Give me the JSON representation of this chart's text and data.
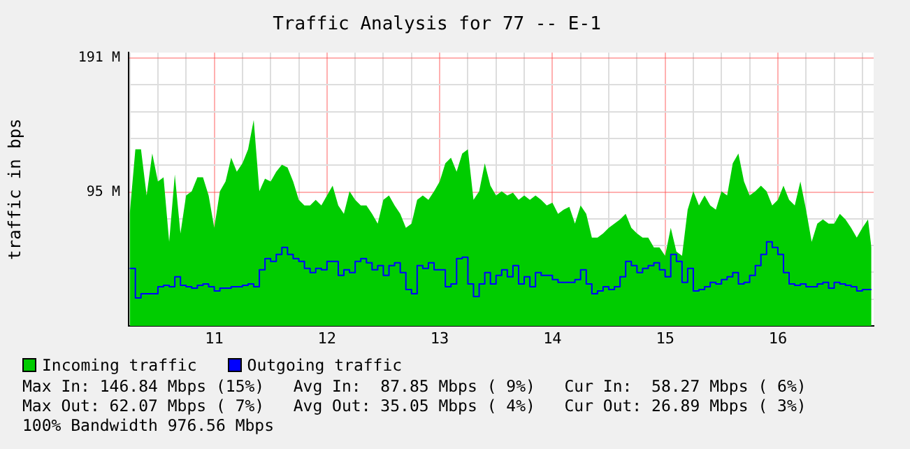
{
  "chart_data": {
    "type": "area",
    "title": "Traffic Analysis for 77 -- E-1",
    "ylabel": "traffic in bps",
    "x": [
      10.25,
      10.3,
      10.35,
      10.4,
      10.45,
      10.5,
      10.55,
      10.6,
      10.65,
      10.7,
      10.75,
      10.8,
      10.85,
      10.9,
      10.95,
      11,
      11.05,
      11.1,
      11.15,
      11.2,
      11.25,
      11.3,
      11.35,
      11.4,
      11.45,
      11.5,
      11.55,
      11.6,
      11.65,
      11.7,
      11.75,
      11.8,
      11.85,
      11.9,
      11.95,
      12,
      12.05,
      12.1,
      12.15,
      12.2,
      12.25,
      12.3,
      12.35,
      12.4,
      12.45,
      12.5,
      12.55,
      12.6,
      12.65,
      12.7,
      12.75,
      12.8,
      12.85,
      12.9,
      12.95,
      13,
      13.05,
      13.1,
      13.15,
      13.2,
      13.25,
      13.3,
      13.35,
      13.4,
      13.45,
      13.5,
      13.55,
      13.6,
      13.65,
      13.7,
      13.75,
      13.8,
      13.85,
      13.9,
      13.95,
      14,
      14.05,
      14.1,
      14.15,
      14.2,
      14.25,
      14.3,
      14.35,
      14.4,
      14.45,
      14.5,
      14.55,
      14.6,
      14.65,
      14.7,
      14.75,
      14.8,
      14.85,
      14.9,
      14.95,
      15,
      15.05,
      15.1,
      15.15,
      15.2,
      15.25,
      15.3,
      15.35,
      15.4,
      15.45,
      15.5,
      15.55,
      15.6,
      15.65,
      15.7,
      15.75,
      15.8,
      15.85,
      15.9,
      15.95,
      16,
      16.05,
      16.1,
      16.15,
      16.2,
      16.25,
      16.3,
      16.35,
      16.4,
      16.45,
      16.5,
      16.55,
      16.6,
      16.65,
      16.7,
      16.75,
      16.8,
      16.83
    ],
    "series": [
      {
        "name": "Incoming traffic",
        "type": "area",
        "color": "#00cc00",
        "values": [
          80,
          126,
          126,
          93,
          123,
          103,
          106,
          60,
          108,
          66,
          93,
          96,
          106,
          106,
          93,
          70,
          96,
          103,
          120,
          110,
          116,
          126,
          147,
          96,
          105,
          103,
          110,
          115,
          113,
          103,
          90,
          86,
          86,
          90,
          86,
          93,
          100,
          86,
          80,
          96,
          90,
          86,
          86,
          80,
          73,
          90,
          93,
          86,
          80,
          70,
          73,
          90,
          93,
          90,
          96,
          103,
          116,
          120,
          110,
          123,
          126,
          90,
          96,
          116,
          100,
          93,
          96,
          93,
          95,
          90,
          93,
          90,
          93,
          90,
          86,
          88,
          80,
          83,
          85,
          73,
          86,
          80,
          63,
          63,
          66,
          70,
          73,
          76,
          80,
          70,
          66,
          63,
          63,
          56,
          56,
          50,
          70,
          53,
          50,
          83,
          96,
          86,
          93,
          86,
          83,
          96,
          93,
          116,
          123,
          103,
          93,
          96,
          100,
          96,
          86,
          90,
          100,
          90,
          86,
          103,
          83,
          60,
          73,
          76,
          73,
          73,
          80,
          76,
          70,
          63,
          70,
          76,
          56
        ]
      },
      {
        "name": "Outgoing traffic",
        "type": "step",
        "color": "#0000ff",
        "values": [
          41,
          20,
          23,
          23,
          23,
          28,
          29,
          28,
          35,
          29,
          28,
          27,
          29,
          30,
          28,
          25,
          27,
          27,
          28,
          28,
          29,
          30,
          28,
          40,
          48,
          46,
          51,
          56,
          51,
          48,
          46,
          41,
          38,
          41,
          40,
          46,
          46,
          36,
          40,
          38,
          46,
          48,
          45,
          40,
          43,
          36,
          43,
          45,
          38,
          26,
          23,
          43,
          41,
          45,
          40,
          40,
          28,
          30,
          48,
          49,
          30,
          21,
          30,
          38,
          30,
          36,
          40,
          35,
          43,
          30,
          35,
          28,
          38,
          36,
          36,
          33,
          31,
          31,
          31,
          33,
          40,
          30,
          23,
          25,
          28,
          26,
          28,
          35,
          46,
          43,
          38,
          41,
          43,
          45,
          40,
          35,
          51,
          46,
          31,
          41,
          25,
          26,
          28,
          31,
          30,
          33,
          35,
          38,
          30,
          31,
          36,
          43,
          51,
          60,
          56,
          51,
          38,
          30,
          29,
          30,
          28,
          28,
          30,
          31,
          27,
          31,
          30,
          29,
          28,
          25,
          26,
          26,
          26
        ]
      }
    ],
    "xlim": [
      10.24,
      16.85
    ],
    "xticks": [
      {
        "value": 10.25,
        "label": null
      },
      {
        "value": 10.5,
        "label": null
      },
      {
        "value": 10.75,
        "label": null
      },
      11,
      {
        "value": 11.25,
        "label": null
      },
      {
        "value": 11.5,
        "label": null
      },
      {
        "value": 11.75,
        "label": null
      },
      12,
      {
        "value": 12.25,
        "label": null
      },
      {
        "value": 12.5,
        "label": null
      },
      {
        "value": 12.75,
        "label": null
      },
      13,
      {
        "value": 13.25,
        "label": null
      },
      {
        "value": 13.5,
        "label": null
      },
      {
        "value": 13.75,
        "label": null
      },
      14,
      {
        "value": 14.25,
        "label": null
      },
      {
        "value": 14.5,
        "label": null
      },
      {
        "value": 14.75,
        "label": null
      },
      15,
      {
        "value": 15.25,
        "label": null
      },
      {
        "value": 15.5,
        "label": null
      },
      {
        "value": 15.75,
        "label": null
      },
      16,
      {
        "value": 16.25,
        "label": null
      },
      {
        "value": 16.5,
        "label": null
      },
      {
        "value": 16.75,
        "label": null
      }
    ],
    "ylim": [
      0,
      195
    ],
    "yticks": [
      {
        "value": 0,
        "label": null
      },
      {
        "value": 19.1,
        "label": null
      },
      {
        "value": 38.2,
        "label": null
      },
      {
        "value": 57.3,
        "label": null
      },
      {
        "value": 76.4,
        "label": null
      },
      {
        "value": 95.5,
        "label": "95 M"
      },
      {
        "value": 114.6,
        "label": null
      },
      {
        "value": 133.7,
        "label": null
      },
      {
        "value": 152.8,
        "label": null
      },
      {
        "value": 171.9,
        "label": null
      },
      {
        "value": 191,
        "label": "191 M"
      }
    ],
    "grid": true,
    "legend": "bottom",
    "annotations": [
      "Max In: 146.84 Mbps (15%)   Avg In:  87.85 Mbps ( 9%)   Cur In:  58.27 Mbps ( 6%)",
      "Max Out: 62.07 Mbps ( 7%)   Avg Out: 35.05 Mbps ( 4%)   Cur Out: 26.89 Mbps ( 3%)",
      "100% Bandwidth 976.56 Mbps"
    ]
  }
}
